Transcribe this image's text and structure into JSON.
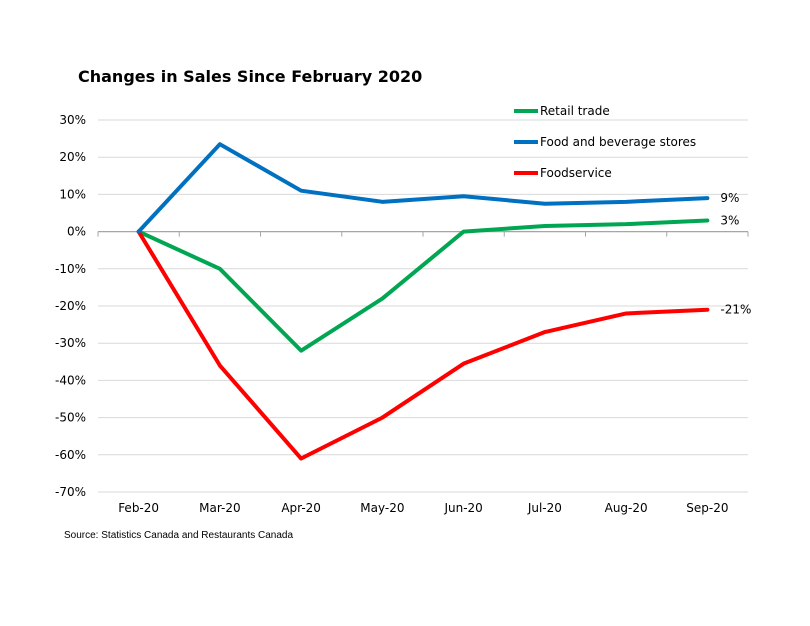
{
  "chart_data": {
    "type": "line",
    "title": "Changes in Sales Since February 2020",
    "categories": [
      "Feb-20",
      "Mar-20",
      "Apr-20",
      "May-20",
      "Jun-20",
      "Jul-20",
      "Aug-20",
      "Sep-20"
    ],
    "y_ticks": [
      "30%",
      "20%",
      "10%",
      "0%",
      "-10%",
      "-20%",
      "-30%",
      "-40%",
      "-50%",
      "-60%",
      "-70%"
    ],
    "ylim": [
      -70,
      30
    ],
    "y_step": 10,
    "grid": true,
    "legend_position": "top-right",
    "series": [
      {
        "name": "Retail trade",
        "color": "#00a651",
        "values": [
          0,
          -10,
          -32,
          -18,
          0,
          1.5,
          2,
          3
        ],
        "end_label": "3%"
      },
      {
        "name": "Food and beverage stores",
        "color": "#0070c0",
        "values": [
          0,
          23.5,
          11,
          8,
          9.5,
          7.5,
          8,
          9
        ],
        "end_label": "9%"
      },
      {
        "name": "Foodservice",
        "color": "#ff0000",
        "values": [
          0,
          -36,
          -61,
          -50,
          -35.5,
          -27,
          -22,
          -21
        ],
        "end_label": "-21%"
      }
    ],
    "source": "Source: Statistics Canada and Restaurants Canada"
  }
}
